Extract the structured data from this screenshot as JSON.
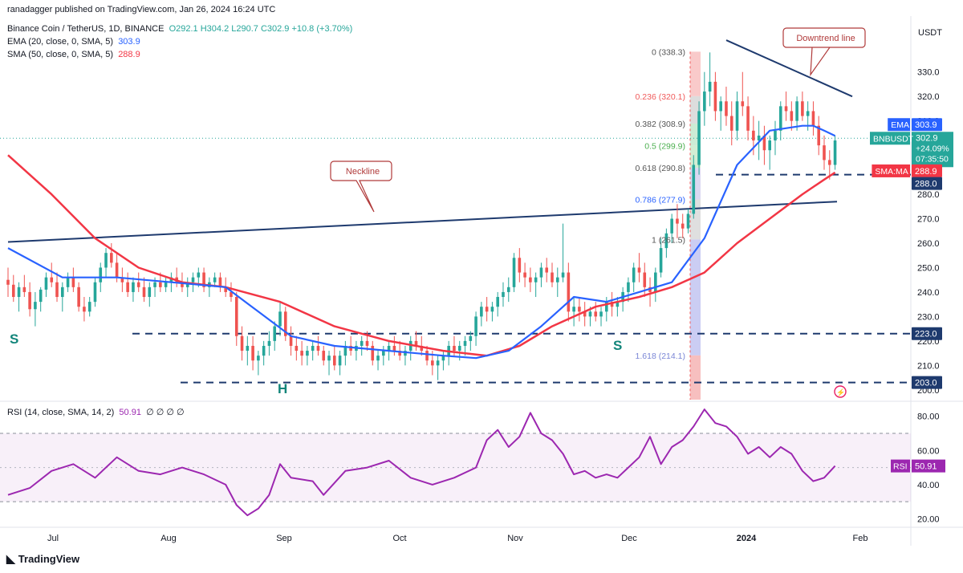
{
  "publisher": "ranadagger published on TradingView.com, Jan 26, 2024 16:24 UTC",
  "legend": {
    "symbol": "Binance Coin / TetherUS, 1D, BINANCE",
    "ohlc": "O292.1 H304.2 L290.7 C302.9 +10.8 (+3.70%)",
    "ema_name": "EMA (20, close, 0, SMA, 5)",
    "ema_value": "303.9",
    "sma_name": "SMA (50, close, 0, SMA, 5)",
    "sma_value": "288.9",
    "rsi_name": "RSI (14, close, SMA, 14, 2)",
    "rsi_value": "50.91",
    "rsi_extra": "∅ ∅ ∅ ∅"
  },
  "colors": {
    "up": "#26a69a",
    "down": "#ef5350",
    "ema": "#2962ff",
    "sma": "#f23645",
    "rsi": "#9c27b0",
    "trend": "#1e3a6e"
  },
  "branding": "TradingView",
  "chart_data": {
    "type": "candlestick",
    "currency_label": "USDT",
    "ylim": [
      196,
      345
    ],
    "y_ticks": [
      "200.0",
      "210.0",
      "220.0",
      "230.0",
      "240.0",
      "250.0",
      "260.0",
      "270.0",
      "280.0",
      "290.0",
      "300.0",
      "310.0",
      "320.0",
      "330.0"
    ],
    "x_ticks": [
      "Jul",
      "Aug",
      "Sep",
      "Oct",
      "Nov",
      "Dec",
      "2024",
      "Feb"
    ],
    "rsi_ylim": [
      16,
      85
    ],
    "rsi_ticks": [
      "20.00",
      "40.00",
      "60.00",
      "80.00"
    ],
    "rsi_bands": [
      30,
      70
    ],
    "rsi_mid": 50,
    "price_badges": [
      {
        "label": "EMA",
        "value": "303.9",
        "color": "#2962ff"
      },
      {
        "label": "BNBUSDT",
        "value": "302.9",
        "extra1": "+24.09%",
        "extra2": "07:35:50",
        "color": "#26a69a"
      },
      {
        "label": "SMA:MA",
        "value": "288.9",
        "color": "#f23645"
      },
      {
        "label": "",
        "value": "288.0",
        "color": "#1e3a6e"
      },
      {
        "label": "",
        "value": "223.0",
        "color": "#1e3a6e"
      },
      {
        "label": "",
        "value": "203.0",
        "color": "#1e3a6e"
      }
    ],
    "rsi_badge": {
      "label": "RSI",
      "value": "50.91"
    },
    "fib_levels": [
      {
        "text": "0 (338.3)",
        "price": 338.3
      },
      {
        "text": "0.236 (320.1)",
        "price": 320.1
      },
      {
        "text": "0.382 (308.9)",
        "price": 308.9
      },
      {
        "text": "0.5 (299.9)",
        "price": 299.9
      },
      {
        "text": "0.618 (290.8)",
        "price": 290.8
      },
      {
        "text": "0.786 (277.9)",
        "price": 277.9
      },
      {
        "text": "1 (261.5)",
        "price": 261.5
      },
      {
        "text": "1.618 (214.1)",
        "price": 214.1
      }
    ],
    "horizontal_levels": [
      288.0,
      223.0,
      203.0
    ],
    "annotations": [
      {
        "text": "Neckline"
      },
      {
        "text": "Downtrend line"
      },
      {
        "text": "S"
      },
      {
        "text": "H"
      },
      {
        "text": "S"
      }
    ],
    "candles": [
      [
        245,
        250,
        238,
        243
      ],
      [
        243,
        247,
        236,
        238
      ],
      [
        238,
        244,
        232,
        242
      ],
      [
        242,
        247,
        238,
        240
      ],
      [
        240,
        244,
        230,
        233
      ],
      [
        233,
        240,
        226,
        236
      ],
      [
        236,
        242,
        232,
        241
      ],
      [
        241,
        248,
        238,
        246
      ],
      [
        246,
        252,
        242,
        244
      ],
      [
        244,
        248,
        236,
        238
      ],
      [
        238,
        244,
        232,
        242
      ],
      [
        242,
        248,
        240,
        246
      ],
      [
        246,
        250,
        240,
        242
      ],
      [
        242,
        244,
        232,
        234
      ],
      [
        234,
        238,
        228,
        232
      ],
      [
        232,
        238,
        230,
        236
      ],
      [
        236,
        246,
        234,
        244
      ],
      [
        244,
        252,
        240,
        250
      ],
      [
        250,
        258,
        246,
        256
      ],
      [
        256,
        260,
        250,
        252
      ],
      [
        252,
        256,
        244,
        246
      ],
      [
        246,
        250,
        240,
        244
      ],
      [
        244,
        248,
        238,
        240
      ],
      [
        240,
        246,
        236,
        244
      ],
      [
        244,
        248,
        240,
        242
      ],
      [
        242,
        246,
        236,
        238
      ],
      [
        238,
        244,
        234,
        242
      ],
      [
        242,
        246,
        238,
        244
      ],
      [
        244,
        248,
        240,
        242
      ],
      [
        242,
        246,
        240,
        244
      ],
      [
        244,
        248,
        240,
        246
      ],
      [
        246,
        250,
        242,
        244
      ],
      [
        244,
        248,
        240,
        242
      ],
      [
        242,
        246,
        238,
        244
      ],
      [
        244,
        248,
        240,
        246
      ],
      [
        246,
        250,
        242,
        248
      ],
      [
        248,
        250,
        240,
        242
      ],
      [
        242,
        246,
        238,
        244
      ],
      [
        244,
        248,
        242,
        246
      ],
      [
        246,
        248,
        240,
        242
      ],
      [
        242,
        246,
        238,
        240
      ],
      [
        240,
        244,
        236,
        238
      ],
      [
        238,
        240,
        218,
        222
      ],
      [
        222,
        226,
        212,
        216
      ],
      [
        216,
        222,
        210,
        218
      ],
      [
        218,
        222,
        208,
        212
      ],
      [
        212,
        216,
        206,
        214
      ],
      [
        214,
        220,
        210,
        218
      ],
      [
        218,
        224,
        214,
        220
      ],
      [
        220,
        228,
        216,
        226
      ],
      [
        226,
        236,
        222,
        232
      ],
      [
        232,
        234,
        220,
        222
      ],
      [
        222,
        226,
        214,
        218
      ],
      [
        218,
        222,
        212,
        216
      ],
      [
        216,
        220,
        210,
        214
      ],
      [
        214,
        218,
        210,
        216
      ],
      [
        216,
        220,
        212,
        218
      ],
      [
        218,
        222,
        214,
        216
      ],
      [
        216,
        218,
        210,
        212
      ],
      [
        212,
        216,
        206,
        214
      ],
      [
        214,
        218,
        208,
        210
      ],
      [
        210,
        216,
        206,
        214
      ],
      [
        214,
        220,
        210,
        218
      ],
      [
        218,
        222,
        214,
        216
      ],
      [
        216,
        220,
        212,
        218
      ],
      [
        218,
        222,
        214,
        220
      ],
      [
        220,
        224,
        216,
        218
      ],
      [
        218,
        220,
        210,
        212
      ],
      [
        212,
        216,
        208,
        214
      ],
      [
        214,
        218,
        210,
        216
      ],
      [
        216,
        220,
        212,
        218
      ],
      [
        218,
        222,
        214,
        216
      ],
      [
        216,
        220,
        212,
        214
      ],
      [
        214,
        218,
        210,
        216
      ],
      [
        216,
        222,
        212,
        220
      ],
      [
        220,
        224,
        216,
        218
      ],
      [
        218,
        222,
        214,
        216
      ],
      [
        216,
        218,
        210,
        212
      ],
      [
        212,
        216,
        206,
        210
      ],
      [
        210,
        214,
        204,
        212
      ],
      [
        212,
        216,
        208,
        214
      ],
      [
        214,
        220,
        210,
        218
      ],
      [
        218,
        222,
        214,
        216
      ],
      [
        216,
        220,
        212,
        218
      ],
      [
        218,
        222,
        214,
        220
      ],
      [
        220,
        224,
        216,
        222
      ],
      [
        222,
        232,
        218,
        230
      ],
      [
        230,
        236,
        226,
        234
      ],
      [
        234,
        238,
        228,
        232
      ],
      [
        232,
        236,
        228,
        234
      ],
      [
        234,
        240,
        230,
        238
      ],
      [
        238,
        244,
        234,
        240
      ],
      [
        240,
        246,
        236,
        242
      ],
      [
        242,
        256,
        240,
        254
      ],
      [
        254,
        258,
        244,
        248
      ],
      [
        248,
        252,
        242,
        246
      ],
      [
        246,
        250,
        240,
        244
      ],
      [
        244,
        248,
        238,
        246
      ],
      [
        246,
        252,
        242,
        250
      ],
      [
        250,
        254,
        244,
        248
      ],
      [
        248,
        252,
        242,
        244
      ],
      [
        244,
        250,
        238,
        246
      ],
      [
        246,
        268,
        244,
        248
      ],
      [
        248,
        252,
        228,
        232
      ],
      [
        232,
        238,
        226,
        234
      ],
      [
        234,
        238,
        228,
        232
      ],
      [
        232,
        236,
        226,
        230
      ],
      [
        230,
        234,
        226,
        232
      ],
      [
        232,
        236,
        228,
        230
      ],
      [
        230,
        234,
        226,
        232
      ],
      [
        232,
        238,
        228,
        236
      ],
      [
        236,
        240,
        230,
        234
      ],
      [
        234,
        238,
        230,
        236
      ],
      [
        236,
        242,
        232,
        240
      ],
      [
        240,
        246,
        236,
        244
      ],
      [
        244,
        252,
        240,
        250
      ],
      [
        250,
        256,
        244,
        248
      ],
      [
        248,
        252,
        238,
        242
      ],
      [
        242,
        246,
        234,
        240
      ],
      [
        240,
        250,
        236,
        248
      ],
      [
        248,
        262,
        246,
        258
      ],
      [
        258,
        266,
        254,
        264
      ],
      [
        264,
        272,
        260,
        270
      ],
      [
        270,
        276,
        262,
        268
      ],
      [
        268,
        272,
        262,
        266
      ],
      [
        266,
        274,
        264,
        272
      ],
      [
        272,
        296,
        270,
        292
      ],
      [
        292,
        318,
        288,
        314
      ],
      [
        314,
        330,
        308,
        322
      ],
      [
        322,
        338,
        316,
        326
      ],
      [
        326,
        330,
        310,
        314
      ],
      [
        314,
        320,
        306,
        318
      ],
      [
        318,
        324,
        308,
        312
      ],
      [
        312,
        318,
        300,
        306
      ],
      [
        306,
        322,
        302,
        318
      ],
      [
        318,
        330,
        312,
        316
      ],
      [
        316,
        320,
        302,
        306
      ],
      [
        306,
        312,
        296,
        302
      ],
      [
        302,
        310,
        294,
        304
      ],
      [
        304,
        308,
        292,
        298
      ],
      [
        298,
        304,
        290,
        302
      ],
      [
        302,
        310,
        296,
        306
      ],
      [
        306,
        318,
        302,
        316
      ],
      [
        316,
        322,
        310,
        314
      ],
      [
        314,
        318,
        306,
        310
      ],
      [
        310,
        320,
        306,
        318
      ],
      [
        318,
        322,
        310,
        312
      ],
      [
        312,
        318,
        306,
        314
      ],
      [
        314,
        318,
        304,
        308
      ],
      [
        308,
        312,
        296,
        300
      ],
      [
        300,
        304,
        290,
        294
      ],
      [
        294,
        298,
        286,
        292
      ],
      [
        292,
        304,
        290,
        302
      ]
    ],
    "ema20_knots": [
      [
        0,
        258
      ],
      [
        10,
        246
      ],
      [
        20,
        246
      ],
      [
        30,
        244
      ],
      [
        40,
        242
      ],
      [
        46,
        232
      ],
      [
        52,
        222
      ],
      [
        60,
        218
      ],
      [
        70,
        216
      ],
      [
        80,
        214
      ],
      [
        86,
        213
      ],
      [
        92,
        216
      ],
      [
        98,
        226
      ],
      [
        104,
        238
      ],
      [
        110,
        236
      ],
      [
        116,
        240
      ],
      [
        122,
        244
      ],
      [
        128,
        262
      ],
      [
        134,
        292
      ],
      [
        140,
        306
      ],
      [
        146,
        308
      ],
      [
        148,
        308
      ],
      [
        150,
        306
      ],
      [
        152,
        303.9
      ]
    ],
    "sma50_knots": [
      [
        0,
        296
      ],
      [
        8,
        280
      ],
      [
        16,
        262
      ],
      [
        24,
        250
      ],
      [
        32,
        244
      ],
      [
        40,
        242
      ],
      [
        50,
        236
      ],
      [
        60,
        226
      ],
      [
        70,
        220
      ],
      [
        80,
        216
      ],
      [
        88,
        214
      ],
      [
        94,
        218
      ],
      [
        100,
        226
      ],
      [
        108,
        234
      ],
      [
        116,
        238
      ],
      [
        122,
        242
      ],
      [
        128,
        248
      ],
      [
        134,
        260
      ],
      [
        140,
        270
      ],
      [
        146,
        280
      ],
      [
        150,
        286
      ],
      [
        152,
        288.9
      ]
    ],
    "rsi_knots": [
      [
        0,
        34
      ],
      [
        4,
        38
      ],
      [
        8,
        48
      ],
      [
        12,
        52
      ],
      [
        16,
        44
      ],
      [
        20,
        56
      ],
      [
        24,
        48
      ],
      [
        28,
        46
      ],
      [
        32,
        50
      ],
      [
        36,
        46
      ],
      [
        40,
        40
      ],
      [
        42,
        28
      ],
      [
        44,
        22
      ],
      [
        46,
        26
      ],
      [
        48,
        34
      ],
      [
        50,
        52
      ],
      [
        52,
        44
      ],
      [
        56,
        42
      ],
      [
        58,
        34
      ],
      [
        62,
        48
      ],
      [
        66,
        50
      ],
      [
        70,
        54
      ],
      [
        74,
        44
      ],
      [
        78,
        40
      ],
      [
        82,
        44
      ],
      [
        86,
        50
      ],
      [
        88,
        66
      ],
      [
        90,
        72
      ],
      [
        92,
        62
      ],
      [
        94,
        68
      ],
      [
        96,
        82
      ],
      [
        98,
        70
      ],
      [
        100,
        66
      ],
      [
        102,
        58
      ],
      [
        104,
        46
      ],
      [
        106,
        48
      ],
      [
        108,
        44
      ],
      [
        110,
        46
      ],
      [
        112,
        44
      ],
      [
        114,
        50
      ],
      [
        116,
        56
      ],
      [
        118,
        68
      ],
      [
        120,
        52
      ],
      [
        122,
        62
      ],
      [
        124,
        66
      ],
      [
        126,
        74
      ],
      [
        128,
        84
      ],
      [
        130,
        76
      ],
      [
        132,
        74
      ],
      [
        134,
        68
      ],
      [
        136,
        58
      ],
      [
        138,
        62
      ],
      [
        140,
        56
      ],
      [
        142,
        62
      ],
      [
        144,
        58
      ],
      [
        146,
        48
      ],
      [
        148,
        42
      ],
      [
        150,
        44
      ],
      [
        152,
        50.91
      ]
    ],
    "neckline": [
      [
        0,
        260.5
      ],
      [
        152,
        277
      ]
    ],
    "downtrend": [
      [
        128,
        343
      ],
      [
        157,
        320
      ]
    ]
  }
}
